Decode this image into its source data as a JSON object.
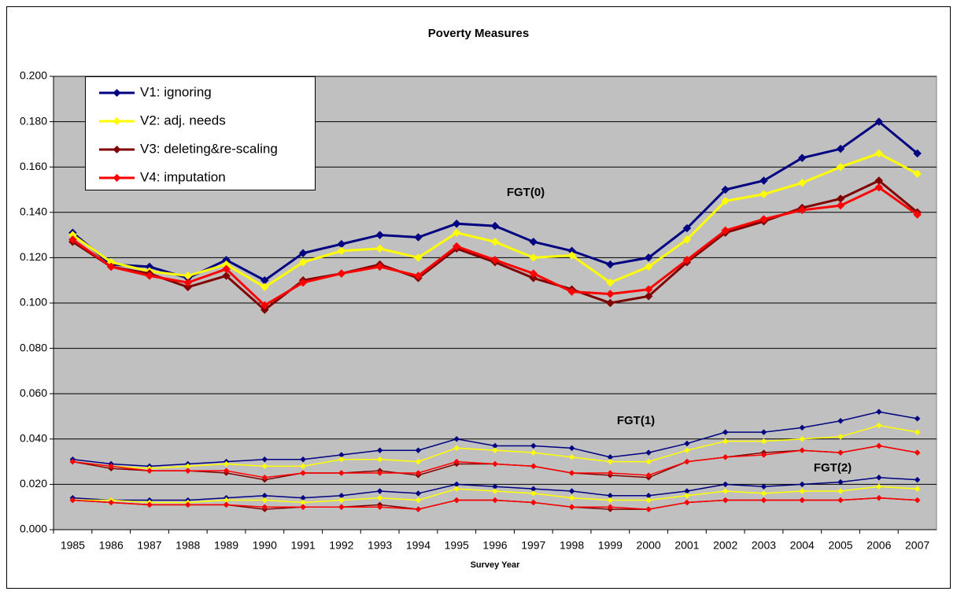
{
  "chart_data": {
    "type": "line",
    "title": "Poverty Measures",
    "x_label": "Survey Year",
    "categories": [
      "1985",
      "1986",
      "1987",
      "1988",
      "1989",
      "1990",
      "1991",
      "1992",
      "1993",
      "1994",
      "1995",
      "1996",
      "1997",
      "1998",
      "1999",
      "2000",
      "2001",
      "2002",
      "2003",
      "2004",
      "2005",
      "2006",
      "2007"
    ],
    "ylim": [
      0,
      0.2
    ],
    "yticks": [
      {
        "value": 0,
        "label": "0.000"
      },
      {
        "value": 0.02,
        "label": "0.020"
      },
      {
        "value": 0.04,
        "label": "0.040"
      },
      {
        "value": 0.06,
        "label": "0.060"
      },
      {
        "value": 0.08,
        "label": "0.080"
      },
      {
        "value": 0.1,
        "label": "0.100"
      },
      {
        "value": 0.12,
        "label": "0.120"
      },
      {
        "value": 0.14,
        "label": "0.140"
      },
      {
        "value": 0.16,
        "label": "0.160"
      },
      {
        "value": 0.18,
        "label": "0.180"
      },
      {
        "value": 0.2,
        "label": "0.200"
      }
    ],
    "grid": true,
    "legend": "top-left",
    "annotations": [
      "FGT(0)",
      "FGT(1)",
      "FGT(2)"
    ],
    "series": [
      {
        "name": "V1: ignoring",
        "color": "#000080",
        "values": [
          0.131,
          0.117,
          0.116,
          0.111,
          0.119,
          0.11,
          0.122,
          0.126,
          0.13,
          0.129,
          0.135,
          0.134,
          0.127,
          0.123,
          0.117,
          0.12,
          0.133,
          0.15,
          0.154,
          0.164,
          0.168,
          0.18,
          0.166
        ]
      },
      {
        "name": "V2: adj. needs",
        "color": "#ffff00",
        "values": [
          0.13,
          0.118,
          0.114,
          0.112,
          0.117,
          0.107,
          0.118,
          0.123,
          0.124,
          0.12,
          0.131,
          0.127,
          0.12,
          0.121,
          0.109,
          0.116,
          0.128,
          0.145,
          0.148,
          0.153,
          0.16,
          0.166,
          0.157
        ]
      },
      {
        "name": "V3: deleting&re-scaling",
        "color": "#800000",
        "values": [
          0.127,
          0.116,
          0.113,
          0.107,
          0.112,
          0.097,
          0.11,
          0.113,
          0.117,
          0.111,
          0.124,
          0.118,
          0.111,
          0.106,
          0.1,
          0.103,
          0.118,
          0.131,
          0.136,
          0.142,
          0.146,
          0.154,
          0.14
        ]
      },
      {
        "name": "V4: imputation",
        "color": "#ff0000",
        "values": [
          0.128,
          0.116,
          0.112,
          0.109,
          0.115,
          0.099,
          0.109,
          0.113,
          0.116,
          0.112,
          0.125,
          0.119,
          0.113,
          0.105,
          0.104,
          0.106,
          0.119,
          0.132,
          0.137,
          0.141,
          0.143,
          0.151,
          0.139
        ]
      },
      {
        "color": "#000080",
        "values": [
          0.031,
          0.029,
          0.028,
          0.029,
          0.03,
          0.031,
          0.031,
          0.033,
          0.035,
          0.035,
          0.04,
          0.037,
          0.037,
          0.036,
          0.032,
          0.034,
          0.038,
          0.043,
          0.043,
          0.045,
          0.048,
          0.052,
          0.049
        ]
      },
      {
        "color": "#ffff00",
        "values": [
          0.03,
          0.028,
          0.027,
          0.028,
          0.029,
          0.028,
          0.028,
          0.031,
          0.031,
          0.03,
          0.036,
          0.035,
          0.034,
          0.032,
          0.03,
          0.03,
          0.035,
          0.039,
          0.039,
          0.04,
          0.041,
          0.046,
          0.043
        ]
      },
      {
        "color": "#800000",
        "values": [
          0.03,
          0.027,
          0.026,
          0.026,
          0.025,
          0.022,
          0.025,
          0.025,
          0.026,
          0.024,
          0.029,
          0.029,
          0.028,
          0.025,
          0.024,
          0.023,
          0.03,
          0.032,
          0.034,
          0.035,
          0.034,
          0.037,
          0.034
        ]
      },
      {
        "color": "#ff0000",
        "values": [
          0.03,
          0.028,
          0.026,
          0.026,
          0.026,
          0.023,
          0.025,
          0.025,
          0.025,
          0.025,
          0.03,
          0.029,
          0.028,
          0.025,
          0.025,
          0.024,
          0.03,
          0.032,
          0.033,
          0.035,
          0.034,
          0.037,
          0.034
        ]
      },
      {
        "color": "#000080",
        "values": [
          0.014,
          0.013,
          0.013,
          0.013,
          0.014,
          0.015,
          0.014,
          0.015,
          0.017,
          0.016,
          0.02,
          0.019,
          0.018,
          0.017,
          0.015,
          0.015,
          0.017,
          0.02,
          0.019,
          0.02,
          0.021,
          0.023,
          0.022
        ]
      },
      {
        "color": "#ffff00",
        "values": [
          0.013,
          0.013,
          0.012,
          0.012,
          0.013,
          0.013,
          0.012,
          0.013,
          0.014,
          0.013,
          0.018,
          0.017,
          0.016,
          0.014,
          0.013,
          0.013,
          0.015,
          0.017,
          0.016,
          0.017,
          0.017,
          0.019,
          0.018
        ]
      },
      {
        "color": "#800000",
        "values": [
          0.013,
          0.012,
          0.011,
          0.011,
          0.011,
          0.009,
          0.01,
          0.01,
          0.011,
          0.009,
          0.013,
          0.013,
          0.012,
          0.01,
          0.009,
          0.009,
          0.012,
          0.013,
          0.013,
          0.013,
          0.013,
          0.014,
          0.013
        ]
      },
      {
        "color": "#ff0000",
        "values": [
          0.013,
          0.012,
          0.011,
          0.011,
          0.011,
          0.01,
          0.01,
          0.01,
          0.01,
          0.009,
          0.013,
          0.013,
          0.012,
          0.01,
          0.01,
          0.009,
          0.012,
          0.013,
          0.013,
          0.013,
          0.013,
          0.014,
          0.013
        ]
      }
    ]
  }
}
